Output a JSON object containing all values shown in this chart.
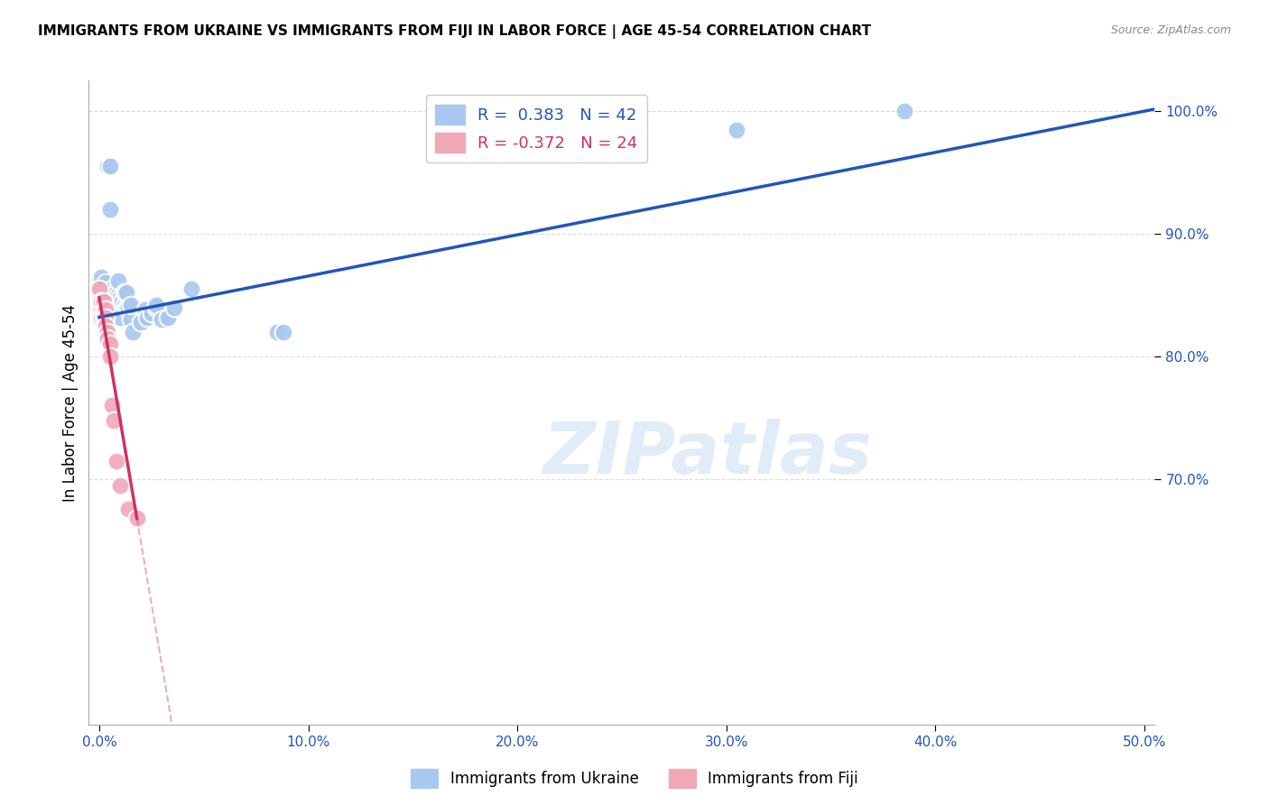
{
  "title": "IMMIGRANTS FROM UKRAINE VS IMMIGRANTS FROM FIJI IN LABOR FORCE | AGE 45-54 CORRELATION CHART",
  "source": "Source: ZipAtlas.com",
  "ylabel": "In Labor Force | Age 45-54",
  "xlim": [
    -0.005,
    0.505
  ],
  "ylim": [
    0.5,
    1.025
  ],
  "xticks": [
    0.0,
    0.1,
    0.2,
    0.3,
    0.4,
    0.5
  ],
  "yticks": [
    0.7,
    0.8,
    0.9,
    1.0
  ],
  "ytick_labels": [
    "70.0%",
    "80.0%",
    "90.0%",
    "100.0%"
  ],
  "xtick_labels": [
    "0.0%",
    "10.0%",
    "20.0%",
    "30.0%",
    "40.0%",
    "50.0%"
  ],
  "ukraine_color": "#A8C8F0",
  "fiji_color": "#F0A8B8",
  "ukraine_R": 0.383,
  "ukraine_N": 42,
  "fiji_R": -0.372,
  "fiji_N": 24,
  "ukraine_line_color": "#2255BB",
  "fiji_line_color": "#CC3366",
  "watermark_text": "ZIPatlas",
  "ukraine_x": [
    0.001,
    0.001,
    0.003,
    0.003,
    0.003,
    0.004,
    0.005,
    0.005,
    0.006,
    0.006,
    0.007,
    0.007,
    0.008,
    0.008,
    0.009,
    0.009,
    0.01,
    0.01,
    0.01,
    0.011,
    0.012,
    0.012,
    0.013,
    0.013,
    0.014,
    0.015,
    0.015,
    0.016,
    0.02,
    0.022,
    0.023,
    0.025,
    0.027,
    0.027,
    0.03,
    0.033,
    0.036,
    0.044,
    0.085,
    0.088,
    0.305,
    0.385
  ],
  "ukraine_y": [
    0.855,
    0.865,
    0.86,
    0.84,
    0.85,
    0.955,
    0.955,
    0.92,
    0.845,
    0.855,
    0.84,
    0.85,
    0.84,
    0.852,
    0.85,
    0.862,
    0.832,
    0.842,
    0.848,
    0.845,
    0.842,
    0.852,
    0.84,
    0.852,
    0.84,
    0.83,
    0.842,
    0.82,
    0.828,
    0.838,
    0.832,
    0.835,
    0.84,
    0.842,
    0.83,
    0.832,
    0.84,
    0.855,
    0.82,
    0.82,
    0.985,
    1.0
  ],
  "fiji_x": [
    0.0,
    0.0,
    0.0,
    0.0,
    0.001,
    0.001,
    0.001,
    0.001,
    0.002,
    0.002,
    0.002,
    0.003,
    0.003,
    0.003,
    0.004,
    0.004,
    0.005,
    0.005,
    0.006,
    0.007,
    0.008,
    0.01,
    0.014,
    0.018
  ],
  "fiji_y": [
    0.845,
    0.84,
    0.838,
    0.855,
    0.842,
    0.838,
    0.832,
    0.845,
    0.838,
    0.832,
    0.845,
    0.838,
    0.832,
    0.825,
    0.82,
    0.815,
    0.81,
    0.8,
    0.76,
    0.748,
    0.715,
    0.695,
    0.676,
    0.668
  ],
  "legend_ukraine": "Immigrants from Ukraine",
  "legend_fiji": "Immigrants from Fiji"
}
